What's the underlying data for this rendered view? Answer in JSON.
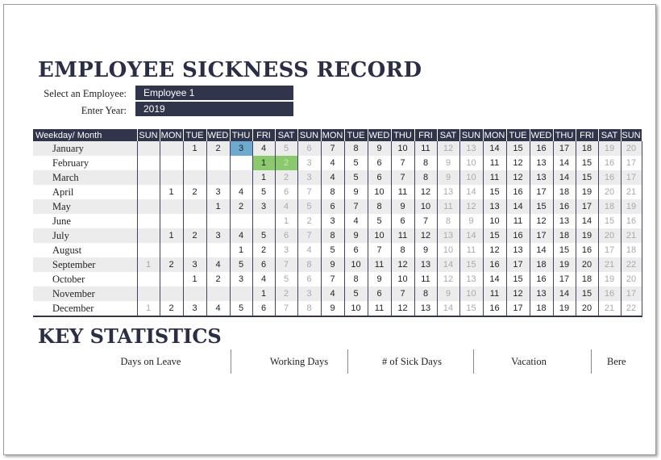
{
  "title": "EMPLOYEE SICKNESS RECORD",
  "fields": {
    "employee_label": "Select an Employee:",
    "employee_value": "Employee 1",
    "year_label": "Enter Year:",
    "year_value": "2019"
  },
  "calendar": {
    "corner_label": "Weekday/ Month",
    "weekdays": [
      "SUN",
      "MON",
      "TUE",
      "WED",
      "THU",
      "FRI",
      "SAT",
      "SUN",
      "MON",
      "TUE",
      "WED",
      "THU",
      "FRI",
      "SAT",
      "SUN",
      "MON",
      "TUE",
      "WED",
      "THU",
      "FRI",
      "SAT",
      "SUN"
    ],
    "months": [
      {
        "name": "January",
        "start": 2,
        "days": 20
      },
      {
        "name": "February",
        "start": 5,
        "days": 17
      },
      {
        "name": "March",
        "start": 5,
        "days": 17
      },
      {
        "name": "April",
        "start": 1,
        "days": 21
      },
      {
        "name": "May",
        "start": 3,
        "days": 19
      },
      {
        "name": "June",
        "start": 6,
        "days": 16
      },
      {
        "name": "July",
        "start": 1,
        "days": 21
      },
      {
        "name": "August",
        "start": 4,
        "days": 18
      },
      {
        "name": "September",
        "start": 0,
        "days": 22
      },
      {
        "name": "October",
        "start": 2,
        "days": 20
      },
      {
        "name": "November",
        "start": 5,
        "days": 17
      },
      {
        "name": "December",
        "start": 0,
        "days": 22
      }
    ],
    "highlights": [
      {
        "month": "January",
        "day": 3,
        "color": "#6ea9d0"
      },
      {
        "month": "February",
        "day": 1,
        "color": "#8cc96d"
      },
      {
        "month": "February",
        "day": 2,
        "color": "#8cc96d"
      }
    ]
  },
  "stats": {
    "title": "KEY STATISTICS",
    "items": [
      "Days on Leave",
      "Working Days",
      "# of Sick Days",
      "Vacation",
      "Bere"
    ]
  },
  "colors": {
    "header_bg": "#30354b",
    "stripe": "#ececec",
    "weekend_text": "#a9a9a9",
    "highlight_blue": "#6ea9d0",
    "highlight_green": "#8cc96d"
  }
}
